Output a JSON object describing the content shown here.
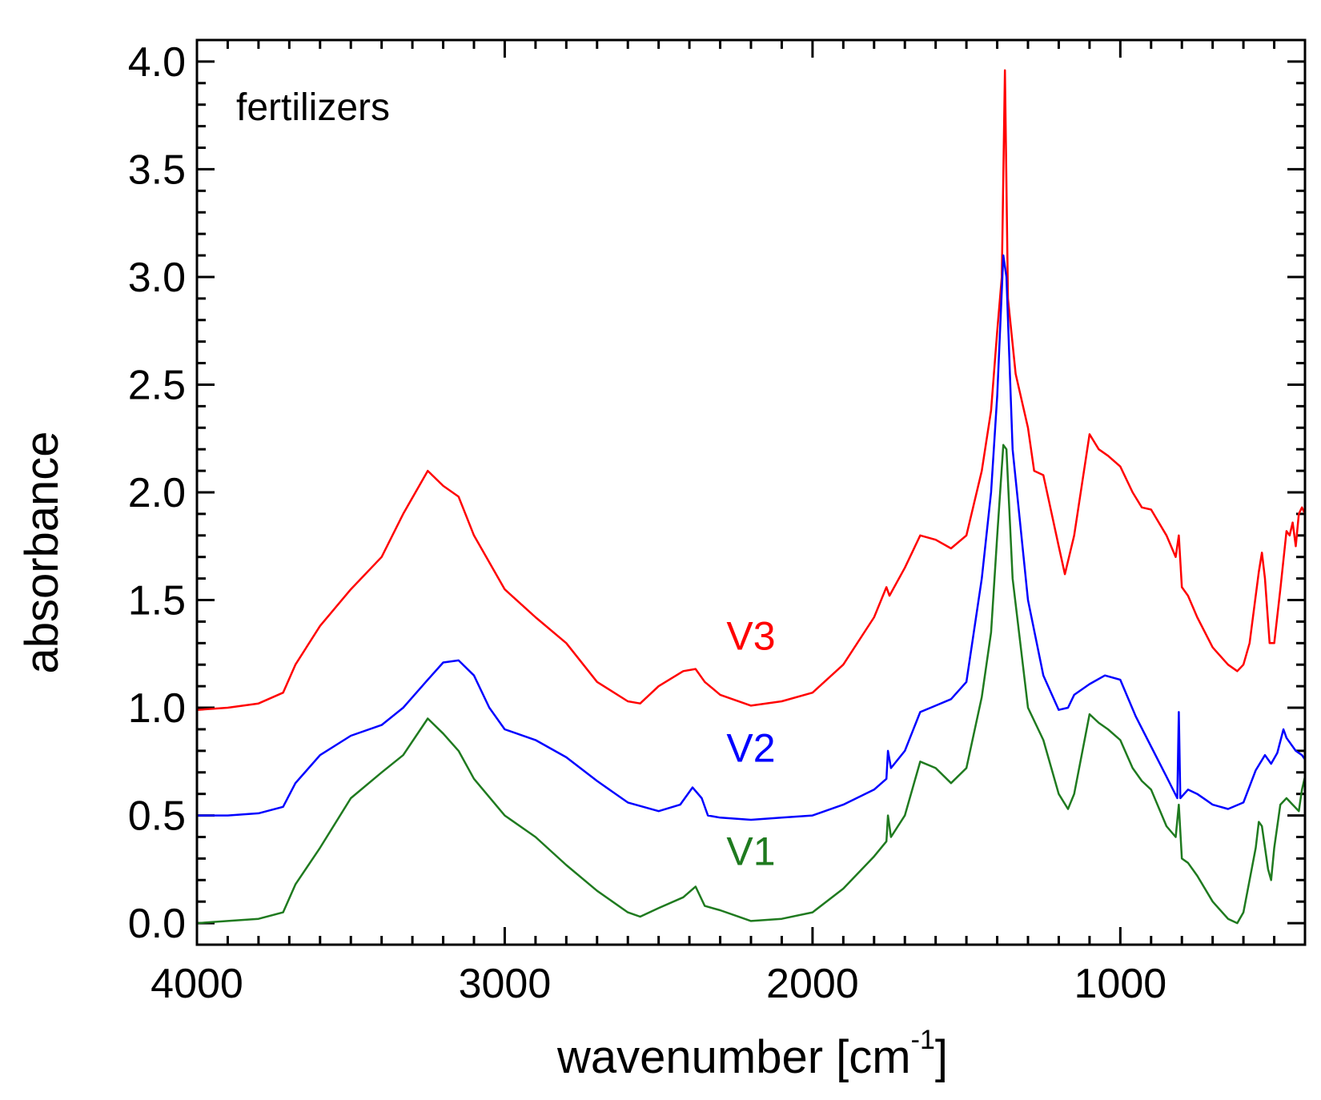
{
  "chart_data": {
    "type": "line",
    "title": "",
    "annotation": "fertilizers",
    "xlabel_main": "wavenumber [cm",
    "xlabel_sup": "-1",
    "xlabel_close": "]",
    "ylabel": "absorbance",
    "xlim": [
      4000,
      400
    ],
    "ylim": [
      -0.1,
      4.1
    ],
    "grid": false,
    "x_ticks": [
      4000,
      3000,
      2000,
      1000
    ],
    "x_tick_labels": [
      "4000",
      "3000",
      "2000",
      "1000"
    ],
    "y_ticks": [
      0.0,
      0.5,
      1.0,
      1.5,
      2.0,
      2.5,
      3.0,
      3.5,
      4.0
    ],
    "y_tick_labels": [
      "0.0",
      "0.5",
      "1.0",
      "1.5",
      "2.0",
      "2.5",
      "3.0",
      "3.5",
      "4.0"
    ],
    "series": [
      {
        "name": "V3",
        "color": "#ff0000",
        "label_at": [
          2200,
          1.27
        ],
        "points": [
          [
            4000,
            0.99
          ],
          [
            3900,
            1.0
          ],
          [
            3800,
            1.02
          ],
          [
            3720,
            1.07
          ],
          [
            3680,
            1.2
          ],
          [
            3600,
            1.38
          ],
          [
            3500,
            1.55
          ],
          [
            3400,
            1.7
          ],
          [
            3330,
            1.9
          ],
          [
            3250,
            2.1
          ],
          [
            3200,
            2.03
          ],
          [
            3150,
            1.98
          ],
          [
            3100,
            1.8
          ],
          [
            3000,
            1.55
          ],
          [
            2900,
            1.42
          ],
          [
            2800,
            1.3
          ],
          [
            2700,
            1.12
          ],
          [
            2600,
            1.03
          ],
          [
            2560,
            1.02
          ],
          [
            2500,
            1.1
          ],
          [
            2420,
            1.17
          ],
          [
            2380,
            1.18
          ],
          [
            2350,
            1.12
          ],
          [
            2300,
            1.06
          ],
          [
            2200,
            1.01
          ],
          [
            2100,
            1.03
          ],
          [
            2000,
            1.07
          ],
          [
            1900,
            1.2
          ],
          [
            1800,
            1.42
          ],
          [
            1760,
            1.56
          ],
          [
            1750,
            1.52
          ],
          [
            1700,
            1.65
          ],
          [
            1650,
            1.8
          ],
          [
            1600,
            1.78
          ],
          [
            1550,
            1.74
          ],
          [
            1500,
            1.8
          ],
          [
            1450,
            2.1
          ],
          [
            1420,
            2.38
          ],
          [
            1400,
            2.75
          ],
          [
            1385,
            3.0
          ],
          [
            1375,
            3.96
          ],
          [
            1365,
            2.9
          ],
          [
            1340,
            2.55
          ],
          [
            1300,
            2.3
          ],
          [
            1280,
            2.1
          ],
          [
            1250,
            2.08
          ],
          [
            1200,
            1.75
          ],
          [
            1180,
            1.62
          ],
          [
            1150,
            1.8
          ],
          [
            1100,
            2.27
          ],
          [
            1070,
            2.2
          ],
          [
            1040,
            2.17
          ],
          [
            1000,
            2.12
          ],
          [
            960,
            2.0
          ],
          [
            930,
            1.93
          ],
          [
            900,
            1.92
          ],
          [
            850,
            1.8
          ],
          [
            820,
            1.7
          ],
          [
            810,
            1.8
          ],
          [
            800,
            1.56
          ],
          [
            780,
            1.52
          ],
          [
            750,
            1.42
          ],
          [
            700,
            1.28
          ],
          [
            650,
            1.2
          ],
          [
            620,
            1.17
          ],
          [
            600,
            1.2
          ],
          [
            580,
            1.3
          ],
          [
            550,
            1.63
          ],
          [
            540,
            1.72
          ],
          [
            530,
            1.6
          ],
          [
            515,
            1.3
          ],
          [
            500,
            1.3
          ],
          [
            480,
            1.55
          ],
          [
            460,
            1.82
          ],
          [
            450,
            1.8
          ],
          [
            440,
            1.86
          ],
          [
            430,
            1.75
          ],
          [
            420,
            1.9
          ],
          [
            410,
            1.93
          ],
          [
            400,
            1.9
          ]
        ]
      },
      {
        "name": "V2",
        "color": "#0000ff",
        "label_at": [
          2200,
          0.75
        ],
        "points": [
          [
            4000,
            0.5
          ],
          [
            3900,
            0.5
          ],
          [
            3800,
            0.51
          ],
          [
            3720,
            0.54
          ],
          [
            3680,
            0.65
          ],
          [
            3600,
            0.78
          ],
          [
            3500,
            0.87
          ],
          [
            3400,
            0.92
          ],
          [
            3330,
            1.0
          ],
          [
            3250,
            1.13
          ],
          [
            3200,
            1.21
          ],
          [
            3150,
            1.22
          ],
          [
            3100,
            1.15
          ],
          [
            3050,
            1.0
          ],
          [
            3000,
            0.9
          ],
          [
            2900,
            0.85
          ],
          [
            2800,
            0.77
          ],
          [
            2700,
            0.66
          ],
          [
            2600,
            0.56
          ],
          [
            2500,
            0.52
          ],
          [
            2430,
            0.55
          ],
          [
            2390,
            0.63
          ],
          [
            2360,
            0.58
          ],
          [
            2340,
            0.5
          ],
          [
            2300,
            0.49
          ],
          [
            2200,
            0.48
          ],
          [
            2100,
            0.49
          ],
          [
            2000,
            0.5
          ],
          [
            1900,
            0.55
          ],
          [
            1800,
            0.62
          ],
          [
            1760,
            0.67
          ],
          [
            1755,
            0.8
          ],
          [
            1745,
            0.72
          ],
          [
            1700,
            0.8
          ],
          [
            1650,
            0.98
          ],
          [
            1600,
            1.01
          ],
          [
            1550,
            1.04
          ],
          [
            1500,
            1.12
          ],
          [
            1450,
            1.6
          ],
          [
            1420,
            2.0
          ],
          [
            1400,
            2.45
          ],
          [
            1380,
            3.1
          ],
          [
            1370,
            3.0
          ],
          [
            1350,
            2.2
          ],
          [
            1300,
            1.5
          ],
          [
            1250,
            1.15
          ],
          [
            1200,
            0.99
          ],
          [
            1170,
            1.0
          ],
          [
            1150,
            1.06
          ],
          [
            1100,
            1.11
          ],
          [
            1050,
            1.15
          ],
          [
            1000,
            1.13
          ],
          [
            950,
            0.96
          ],
          [
            900,
            0.82
          ],
          [
            850,
            0.68
          ],
          [
            815,
            0.58
          ],
          [
            810,
            0.98
          ],
          [
            805,
            0.58
          ],
          [
            780,
            0.62
          ],
          [
            750,
            0.6
          ],
          [
            720,
            0.57
          ],
          [
            700,
            0.55
          ],
          [
            650,
            0.53
          ],
          [
            600,
            0.56
          ],
          [
            560,
            0.71
          ],
          [
            530,
            0.78
          ],
          [
            510,
            0.74
          ],
          [
            490,
            0.79
          ],
          [
            470,
            0.9
          ],
          [
            460,
            0.86
          ],
          [
            430,
            0.8
          ],
          [
            410,
            0.78
          ],
          [
            400,
            0.76
          ]
        ]
      },
      {
        "name": "V1",
        "color": "#1f7a1f",
        "label_at": [
          2200,
          0.27
        ],
        "points": [
          [
            4000,
            0.0
          ],
          [
            3900,
            0.01
          ],
          [
            3800,
            0.02
          ],
          [
            3720,
            0.05
          ],
          [
            3680,
            0.18
          ],
          [
            3600,
            0.35
          ],
          [
            3500,
            0.58
          ],
          [
            3400,
            0.7
          ],
          [
            3330,
            0.78
          ],
          [
            3250,
            0.95
          ],
          [
            3200,
            0.88
          ],
          [
            3150,
            0.8
          ],
          [
            3100,
            0.67
          ],
          [
            3000,
            0.5
          ],
          [
            2900,
            0.4
          ],
          [
            2800,
            0.27
          ],
          [
            2700,
            0.15
          ],
          [
            2600,
            0.05
          ],
          [
            2560,
            0.03
          ],
          [
            2500,
            0.07
          ],
          [
            2420,
            0.12
          ],
          [
            2380,
            0.17
          ],
          [
            2350,
            0.08
          ],
          [
            2300,
            0.06
          ],
          [
            2200,
            0.01
          ],
          [
            2100,
            0.02
          ],
          [
            2000,
            0.05
          ],
          [
            1900,
            0.16
          ],
          [
            1800,
            0.31
          ],
          [
            1760,
            0.38
          ],
          [
            1755,
            0.5
          ],
          [
            1745,
            0.4
          ],
          [
            1700,
            0.5
          ],
          [
            1650,
            0.75
          ],
          [
            1600,
            0.72
          ],
          [
            1550,
            0.65
          ],
          [
            1500,
            0.72
          ],
          [
            1450,
            1.05
          ],
          [
            1420,
            1.35
          ],
          [
            1400,
            1.8
          ],
          [
            1380,
            2.22
          ],
          [
            1370,
            2.2
          ],
          [
            1350,
            1.6
          ],
          [
            1300,
            1.0
          ],
          [
            1250,
            0.85
          ],
          [
            1200,
            0.6
          ],
          [
            1170,
            0.53
          ],
          [
            1150,
            0.6
          ],
          [
            1100,
            0.97
          ],
          [
            1070,
            0.93
          ],
          [
            1040,
            0.9
          ],
          [
            1000,
            0.85
          ],
          [
            960,
            0.72
          ],
          [
            930,
            0.66
          ],
          [
            900,
            0.62
          ],
          [
            850,
            0.45
          ],
          [
            820,
            0.4
          ],
          [
            810,
            0.55
          ],
          [
            800,
            0.3
          ],
          [
            780,
            0.28
          ],
          [
            750,
            0.22
          ],
          [
            700,
            0.1
          ],
          [
            650,
            0.02
          ],
          [
            620,
            0.0
          ],
          [
            600,
            0.05
          ],
          [
            580,
            0.2
          ],
          [
            560,
            0.35
          ],
          [
            550,
            0.47
          ],
          [
            540,
            0.45
          ],
          [
            520,
            0.25
          ],
          [
            510,
            0.2
          ],
          [
            500,
            0.35
          ],
          [
            480,
            0.55
          ],
          [
            460,
            0.58
          ],
          [
            440,
            0.55
          ],
          [
            420,
            0.52
          ],
          [
            410,
            0.62
          ],
          [
            400,
            0.68
          ]
        ]
      }
    ]
  }
}
